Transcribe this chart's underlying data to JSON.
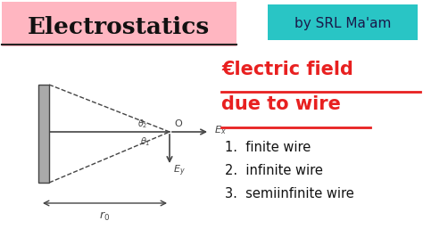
{
  "bg_color": "#ffffff",
  "title_box_color": "#ffb6c1",
  "title_text": "Electrostatics",
  "title_text_color": "#111111",
  "byline_box_color": "#29c5c5",
  "byline_text": "by SRL Ma'am",
  "byline_text_color": "#1a1a4a",
  "efield_title_line1": "€lectric field",
  "efield_title_line2": "due to wire",
  "efield_text_color": "#e82020",
  "list_items": [
    "1.  finite wire",
    "2.  infinite wire",
    "3.  semiinfinite wire"
  ],
  "list_color": "#111111",
  "diagram_color": "#444444",
  "wire_color": "#777777",
  "title_underline_color": "#222222",
  "fig_width": 4.74,
  "fig_height": 2.66,
  "dpi": 100
}
